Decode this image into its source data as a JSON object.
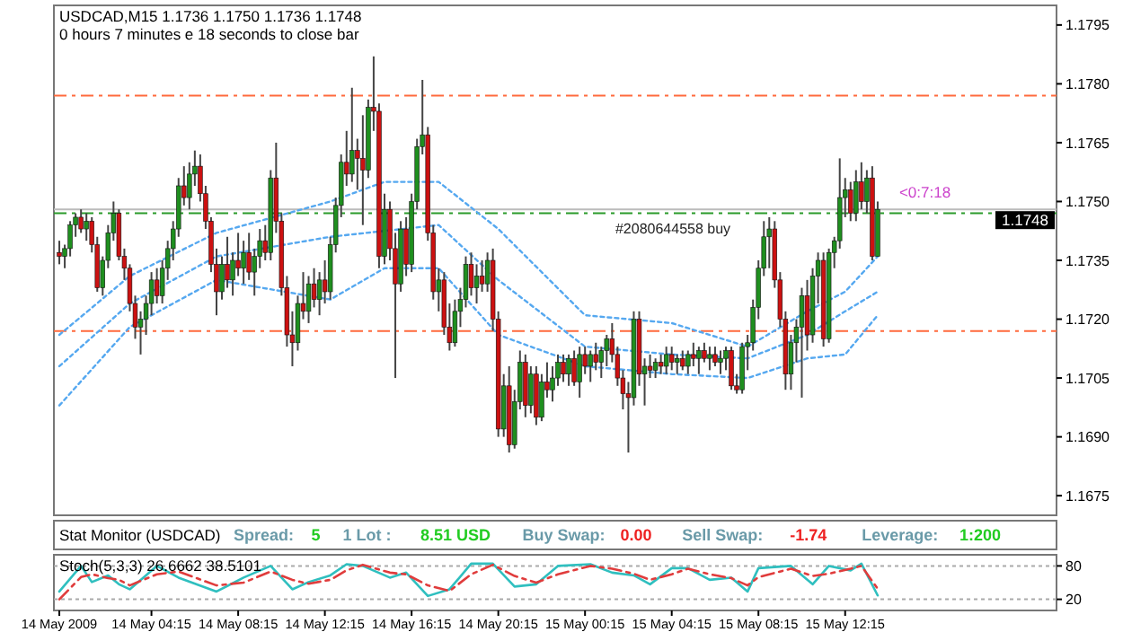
{
  "chart_data": [
    {
      "type": "candlestick",
      "title": "USDCAD,M15  1.1736 1.1750 1.1736 1.1748",
      "subtitle": "0 hours 7 minutes e 18 seconds to close bar",
      "xlim": [
        "2009-05-13T23:45",
        "2009-05-15T22:00"
      ],
      "ylim": [
        1.167,
        1.18
      ],
      "yticks": [
        1.1675,
        {
          "value": 1.169,
          "label": "1.1690"
        },
        1.1705,
        {
          "value": 1.172,
          "label": "1.1720"
        },
        1.1735,
        {
          "value": 1.175,
          "label": "1.1750"
        },
        1.1765,
        {
          "value": 1.178,
          "label": "1.1780"
        },
        1.1795
      ],
      "tick_labels": "y",
      "x": [
        "2009-05-14T00:00",
        "2009-05-14T00:15",
        "2009-05-14T00:30",
        "2009-05-14T00:45",
        "2009-05-14T01:00",
        "2009-05-14T01:15",
        "2009-05-14T01:30",
        "2009-05-14T01:45",
        "2009-05-14T02:00",
        "2009-05-14T02:15",
        "2009-05-14T02:30",
        "2009-05-14T02:45",
        "2009-05-14T03:00",
        "2009-05-14T03:15",
        "2009-05-14T03:30",
        "2009-05-14T03:45",
        "2009-05-14T04:00",
        "2009-05-14T04:15",
        "2009-05-14T04:30",
        "2009-05-14T04:45",
        "2009-05-14T05:00",
        "2009-05-14T05:15",
        "2009-05-14T05:30",
        "2009-05-14T05:45",
        "2009-05-14T06:00",
        "2009-05-14T06:15",
        "2009-05-14T06:30",
        "2009-05-14T06:45",
        "2009-05-14T07:00",
        "2009-05-14T07:15",
        "2009-05-14T07:30",
        "2009-05-14T07:45",
        "2009-05-14T08:00",
        "2009-05-14T08:15",
        "2009-05-14T08:30",
        "2009-05-14T08:45",
        "2009-05-14T09:00",
        "2009-05-14T09:15",
        "2009-05-14T09:30",
        "2009-05-14T09:45",
        "2009-05-14T10:00",
        "2009-05-14T10:15",
        "2009-05-14T10:30",
        "2009-05-14T10:45",
        "2009-05-14T11:00",
        "2009-05-14T11:15",
        "2009-05-14T11:30",
        "2009-05-14T11:45",
        "2009-05-14T12:00",
        "2009-05-14T12:15",
        "2009-05-14T12:30",
        "2009-05-14T12:45",
        "2009-05-14T13:00",
        "2009-05-14T13:15",
        "2009-05-14T13:30",
        "2009-05-14T13:45",
        "2009-05-14T14:00",
        "2009-05-14T14:15",
        "2009-05-14T14:30",
        "2009-05-14T14:45",
        "2009-05-14T15:00",
        "2009-05-14T15:15",
        "2009-05-14T15:30",
        "2009-05-14T15:45",
        "2009-05-14T16:00",
        "2009-05-14T16:15",
        "2009-05-14T16:30",
        "2009-05-14T16:45",
        "2009-05-14T17:00",
        "2009-05-14T17:15",
        "2009-05-14T17:30",
        "2009-05-14T17:45",
        "2009-05-14T18:00",
        "2009-05-14T18:15",
        "2009-05-14T18:30",
        "2009-05-14T18:45",
        "2009-05-14T19:00",
        "2009-05-14T19:15",
        "2009-05-14T19:30",
        "2009-05-14T19:45",
        "2009-05-14T20:00",
        "2009-05-14T20:15",
        "2009-05-14T20:30",
        "2009-05-14T20:45",
        "2009-05-14T21:00",
        "2009-05-14T21:15",
        "2009-05-14T21:30",
        "2009-05-14T21:45",
        "2009-05-14T22:00",
        "2009-05-14T22:15",
        "2009-05-14T22:30",
        "2009-05-14T22:45",
        "2009-05-14T23:00",
        "2009-05-14T23:15",
        "2009-05-14T23:30",
        "2009-05-14T23:45",
        "2009-05-15T00:00",
        "2009-05-15T00:15",
        "2009-05-15T00:30",
        "2009-05-15T00:45",
        "2009-05-15T01:00",
        "2009-05-15T01:15",
        "2009-05-15T01:30",
        "2009-05-15T01:45",
        "2009-05-15T02:00",
        "2009-05-15T02:15",
        "2009-05-15T02:30",
        "2009-05-15T02:45",
        "2009-05-15T03:00",
        "2009-05-15T03:15",
        "2009-05-15T03:30",
        "2009-05-15T03:45",
        "2009-05-15T04:00",
        "2009-05-15T04:15",
        "2009-05-15T04:30",
        "2009-05-15T04:45",
        "2009-05-15T05:00",
        "2009-05-15T05:15",
        "2009-05-15T05:30",
        "2009-05-15T05:45",
        "2009-05-15T06:00",
        "2009-05-15T06:15",
        "2009-05-15T06:30",
        "2009-05-15T06:45",
        "2009-05-15T07:00",
        "2009-05-15T07:15",
        "2009-05-15T07:30",
        "2009-05-15T07:45",
        "2009-05-15T08:00",
        "2009-05-15T08:15",
        "2009-05-15T08:30",
        "2009-05-15T08:45",
        "2009-05-15T09:00",
        "2009-05-15T09:15",
        "2009-05-15T09:30",
        "2009-05-15T09:45",
        "2009-05-15T10:00",
        "2009-05-15T10:15",
        "2009-05-15T10:30",
        "2009-05-15T10:45",
        "2009-05-15T11:00",
        "2009-05-15T11:15",
        "2009-05-15T11:30",
        "2009-05-15T11:45",
        "2009-05-15T12:00",
        "2009-05-15T12:15",
        "2009-05-15T12:30",
        "2009-05-15T12:45",
        "2009-05-15T13:00",
        "2009-05-15T13:15",
        "2009-05-15T13:30",
        "2009-05-15T13:45"
      ],
      "ohlc": [
        [
          1.1737,
          1.174,
          1.1734,
          1.1736
        ],
        [
          1.1736,
          1.1739,
          1.1733,
          1.1738
        ],
        [
          1.1738,
          1.1745,
          1.1736,
          1.1744
        ],
        [
          1.1744,
          1.1747,
          1.1741,
          1.1746
        ],
        [
          1.1746,
          1.1748,
          1.1742,
          1.1743
        ],
        [
          1.1743,
          1.1747,
          1.174,
          1.1745
        ],
        [
          1.1745,
          1.1746,
          1.1737,
          1.1739
        ],
        [
          1.1739,
          1.1741,
          1.1727,
          1.1728
        ],
        [
          1.1728,
          1.1736,
          1.1726,
          1.1735
        ],
        [
          1.1735,
          1.1744,
          1.1733,
          1.1742
        ],
        [
          1.1742,
          1.175,
          1.174,
          1.1747
        ],
        [
          1.1747,
          1.1748,
          1.1735,
          1.1736
        ],
        [
          1.1736,
          1.1738,
          1.173,
          1.1733
        ],
        [
          1.1733,
          1.1734,
          1.1722,
          1.1724
        ],
        [
          1.1724,
          1.1726,
          1.1715,
          1.1718
        ],
        [
          1.1718,
          1.1722,
          1.1711,
          1.172
        ],
        [
          1.172,
          1.1726,
          1.1716,
          1.1724
        ],
        [
          1.1724,
          1.1732,
          1.1721,
          1.173
        ],
        [
          1.173,
          1.1733,
          1.1724,
          1.1726
        ],
        [
          1.1726,
          1.1735,
          1.1724,
          1.1733
        ],
        [
          1.1733,
          1.174,
          1.173,
          1.1738
        ],
        [
          1.1738,
          1.1745,
          1.1735,
          1.1743
        ],
        [
          1.1743,
          1.1756,
          1.1741,
          1.1754
        ],
        [
          1.1754,
          1.1759,
          1.1749,
          1.1751
        ],
        [
          1.1751,
          1.176,
          1.1748,
          1.1757
        ],
        [
          1.1757,
          1.1763,
          1.1754,
          1.1759
        ],
        [
          1.1759,
          1.1762,
          1.175,
          1.1752
        ],
        [
          1.1752,
          1.1754,
          1.1743,
          1.1745
        ],
        [
          1.1745,
          1.1746,
          1.1732,
          1.1734
        ],
        [
          1.1734,
          1.1738,
          1.1721,
          1.1727
        ],
        [
          1.1727,
          1.1736,
          1.1725,
          1.1734
        ],
        [
          1.1734,
          1.1741,
          1.1728,
          1.173
        ],
        [
          1.173,
          1.1737,
          1.1726,
          1.1735
        ],
        [
          1.1735,
          1.1742,
          1.1731,
          1.1733
        ],
        [
          1.1733,
          1.174,
          1.1729,
          1.1737
        ],
        [
          1.1737,
          1.1742,
          1.173,
          1.1732
        ],
        [
          1.1732,
          1.1738,
          1.1726,
          1.1736
        ],
        [
          1.1736,
          1.1743,
          1.1733,
          1.174
        ],
        [
          1.174,
          1.1744,
          1.1735,
          1.1737
        ],
        [
          1.1737,
          1.1758,
          1.1735,
          1.1756
        ],
        [
          1.1756,
          1.1765,
          1.1742,
          1.1745
        ],
        [
          1.1745,
          1.1747,
          1.1726,
          1.1728
        ],
        [
          1.1728,
          1.1731,
          1.1713,
          1.1716
        ],
        [
          1.1716,
          1.1722,
          1.1708,
          1.1714
        ],
        [
          1.1714,
          1.1726,
          1.1712,
          1.1724
        ],
        [
          1.1724,
          1.1732,
          1.172,
          1.1722
        ],
        [
          1.1722,
          1.1731,
          1.1719,
          1.1729
        ],
        [
          1.1729,
          1.1733,
          1.1723,
          1.1725
        ],
        [
          1.1725,
          1.1732,
          1.1721,
          1.173
        ],
        [
          1.173,
          1.1735,
          1.1724,
          1.1727
        ],
        [
          1.1727,
          1.1741,
          1.1725,
          1.1739
        ],
        [
          1.1739,
          1.1751,
          1.1737,
          1.1749
        ],
        [
          1.1749,
          1.1762,
          1.1746,
          1.176
        ],
        [
          1.176,
          1.1768,
          1.1754,
          1.1757
        ],
        [
          1.1757,
          1.1779,
          1.1755,
          1.1763
        ],
        [
          1.1763,
          1.1766,
          1.1753,
          1.1761
        ],
        [
          1.1761,
          1.1772,
          1.1744,
          1.1758
        ],
        [
          1.1758,
          1.1776,
          1.1756,
          1.1774
        ],
        [
          1.1774,
          1.1787,
          1.1768,
          1.1773
        ],
        [
          1.1773,
          1.1775,
          1.1733,
          1.1736
        ],
        [
          1.1736,
          1.1752,
          1.1734,
          1.1748
        ],
        [
          1.1748,
          1.175,
          1.1735,
          1.1738
        ],
        [
          1.1738,
          1.1742,
          1.1705,
          1.1729
        ],
        [
          1.1729,
          1.1745,
          1.1727,
          1.1743
        ],
        [
          1.1743,
          1.1746,
          1.1731,
          1.1734
        ],
        [
          1.1734,
          1.1752,
          1.1732,
          1.175
        ],
        [
          1.175,
          1.1766,
          1.1748,
          1.1764
        ],
        [
          1.1764,
          1.1781,
          1.1762,
          1.1767
        ],
        [
          1.1767,
          1.1769,
          1.174,
          1.1742
        ],
        [
          1.1742,
          1.1744,
          1.1725,
          1.1727
        ],
        [
          1.1727,
          1.1733,
          1.1722,
          1.173
        ],
        [
          1.173,
          1.1732,
          1.1716,
          1.1718
        ],
        [
          1.1718,
          1.1724,
          1.1712,
          1.1714
        ],
        [
          1.1714,
          1.1725,
          1.1713,
          1.1722
        ],
        [
          1.1722,
          1.1728,
          1.1718,
          1.1725
        ],
        [
          1.1725,
          1.1736,
          1.1723,
          1.1734
        ],
        [
          1.1734,
          1.1737,
          1.1726,
          1.1728
        ],
        [
          1.1728,
          1.1734,
          1.1724,
          1.1731
        ],
        [
          1.1731,
          1.1735,
          1.1727,
          1.1729
        ],
        [
          1.1729,
          1.1737,
          1.1727,
          1.1735
        ],
        [
          1.1735,
          1.1738,
          1.1717,
          1.172
        ],
        [
          1.172,
          1.1722,
          1.169,
          1.1692
        ],
        [
          1.1692,
          1.1706,
          1.169,
          1.1703
        ],
        [
          1.1703,
          1.1708,
          1.1686,
          1.1688
        ],
        [
          1.1688,
          1.1702,
          1.1687,
          1.1699
        ],
        [
          1.1699,
          1.1712,
          1.1697,
          1.1709
        ],
        [
          1.1709,
          1.1711,
          1.1695,
          1.1698
        ],
        [
          1.1698,
          1.1708,
          1.1696,
          1.1706
        ],
        [
          1.1706,
          1.1708,
          1.1693,
          1.1695
        ],
        [
          1.1695,
          1.1706,
          1.1694,
          1.1704
        ],
        [
          1.1704,
          1.1709,
          1.17,
          1.1702
        ],
        [
          1.1702,
          1.1708,
          1.1699,
          1.1705
        ],
        [
          1.1705,
          1.1711,
          1.1703,
          1.1709
        ],
        [
          1.1709,
          1.1711,
          1.1704,
          1.1706
        ],
        [
          1.1706,
          1.1711,
          1.1703,
          1.171
        ],
        [
          1.171,
          1.1712,
          1.1703,
          1.1704
        ],
        [
          1.1704,
          1.1713,
          1.17,
          1.1711
        ],
        [
          1.1711,
          1.1713,
          1.1706,
          1.1708
        ],
        [
          1.1708,
          1.1712,
          1.1704,
          1.1711
        ],
        [
          1.1711,
          1.1714,
          1.1707,
          1.1709
        ],
        [
          1.1709,
          1.1713,
          1.1705,
          1.1712
        ],
        [
          1.1712,
          1.1716,
          1.1708,
          1.1715
        ],
        [
          1.1715,
          1.1719,
          1.1709,
          1.1711
        ],
        [
          1.1711,
          1.1713,
          1.1703,
          1.1705
        ],
        [
          1.1705,
          1.1707,
          1.1697,
          1.1701
        ],
        [
          1.1701,
          1.1704,
          1.1686,
          1.17
        ],
        [
          1.17,
          1.1722,
          1.1698,
          1.172
        ],
        [
          1.172,
          1.1722,
          1.1703,
          1.1706
        ],
        [
          1.1706,
          1.171,
          1.1698,
          1.1708
        ],
        [
          1.1708,
          1.1711,
          1.1705,
          1.1707
        ],
        [
          1.1707,
          1.171,
          1.1705,
          1.1709
        ],
        [
          1.1709,
          1.1711,
          1.1706,
          1.1708
        ],
        [
          1.1708,
          1.1713,
          1.1706,
          1.1711
        ],
        [
          1.1711,
          1.1713,
          1.1707,
          1.1709
        ],
        [
          1.1709,
          1.1711,
          1.1706,
          1.171
        ],
        [
          1.171,
          1.1712,
          1.1707,
          1.1708
        ],
        [
          1.1708,
          1.1712,
          1.1706,
          1.1711
        ],
        [
          1.1711,
          1.1714,
          1.1708,
          1.171
        ],
        [
          1.171,
          1.1713,
          1.1706,
          1.1712
        ],
        [
          1.1712,
          1.1714,
          1.1709,
          1.171
        ],
        [
          1.171,
          1.1713,
          1.1707,
          1.1711
        ],
        [
          1.1711,
          1.1713,
          1.1708,
          1.1709
        ],
        [
          1.1709,
          1.1712,
          1.1706,
          1.171
        ],
        [
          1.171,
          1.1713,
          1.1707,
          1.1712
        ],
        [
          1.1712,
          1.1713,
          1.1702,
          1.1703
        ],
        [
          1.1703,
          1.1706,
          1.1701,
          1.1702
        ],
        [
          1.1702,
          1.1714,
          1.1701,
          1.1713
        ],
        [
          1.1713,
          1.1716,
          1.1707,
          1.1714
        ],
        [
          1.1714,
          1.1725,
          1.1712,
          1.1723
        ],
        [
          1.1723,
          1.1735,
          1.172,
          1.1733
        ],
        [
          1.1733,
          1.1745,
          1.1731,
          1.1741
        ],
        [
          1.1741,
          1.1746,
          1.1733,
          1.1743
        ],
        [
          1.1743,
          1.1745,
          1.1728,
          1.173
        ],
        [
          1.173,
          1.1732,
          1.1718,
          1.172
        ],
        [
          1.172,
          1.1722,
          1.1702,
          1.1706
        ],
        [
          1.1706,
          1.1716,
          1.1702,
          1.1714
        ],
        [
          1.1714,
          1.172,
          1.1709,
          1.1718
        ],
        [
          1.1718,
          1.1728,
          1.17,
          1.1726
        ],
        [
          1.1726,
          1.173,
          1.1712,
          1.1716
        ],
        [
          1.1716,
          1.1733,
          1.1714,
          1.1731
        ],
        [
          1.1731,
          1.1737,
          1.1724,
          1.1735
        ],
        [
          1.1735,
          1.1737,
          1.1713,
          1.1715
        ],
        [
          1.1715,
          1.1738,
          1.1714,
          1.1737
        ],
        [
          1.1737,
          1.1741,
          1.1733,
          1.174
        ],
        [
          1.174,
          1.1761,
          1.1738,
          1.1751
        ],
        [
          1.1751,
          1.1756,
          1.1746,
          1.1753
        ],
        [
          1.1753,
          1.1755,
          1.1745,
          1.1747
        ],
        [
          1.1747,
          1.1758,
          1.1745,
          1.1755
        ],
        [
          1.1755,
          1.176,
          1.1748,
          1.175
        ],
        [
          1.175,
          1.1758,
          1.1747,
          1.1756
        ],
        [
          1.1756,
          1.1759,
          1.1735,
          1.1736
        ],
        [
          1.1736,
          1.175,
          1.1736,
          1.1748
        ]
      ],
      "colors": [
        "#cc1111",
        "#1f8f1f",
        "#1f8f1f",
        "#1f8f1f",
        "#cc1111",
        "#1f8f1f",
        "#cc1111",
        "#cc1111",
        "#1f8f1f",
        "#1f8f1f",
        "#1f8f1f",
        "#cc1111",
        "#cc1111",
        "#cc1111",
        "#cc1111",
        "#1f8f1f",
        "#1f8f1f",
        "#1f8f1f",
        "#cc1111",
        "#1f8f1f",
        "#1f8f1f",
        "#1f8f1f",
        "#1f8f1f",
        "#cc1111",
        "#1f8f1f",
        "#1f8f1f",
        "#cc1111",
        "#cc1111",
        "#cc1111",
        "#cc1111",
        "#1f8f1f",
        "#cc1111",
        "#1f8f1f",
        "#cc1111",
        "#1f8f1f",
        "#cc1111",
        "#1f8f1f",
        "#1f8f1f",
        "#cc1111",
        "#1f8f1f",
        "#cc1111",
        "#cc1111",
        "#cc1111",
        "#cc1111",
        "#1f8f1f",
        "#cc1111",
        "#1f8f1f",
        "#cc1111",
        "#1f8f1f",
        "#cc1111",
        "#1f8f1f",
        "#1f8f1f",
        "#1f8f1f",
        "#cc1111",
        "#1f8f1f",
        "#cc1111",
        "#cc1111",
        "#1f8f1f",
        "#cc1111",
        "#cc1111",
        "#1f8f1f",
        "#cc1111",
        "#cc1111",
        "#1f8f1f",
        "#cc1111",
        "#1f8f1f",
        "#1f8f1f",
        "#1f8f1f",
        "#cc1111",
        "#cc1111",
        "#1f8f1f",
        "#cc1111",
        "#cc1111",
        "#1f8f1f",
        "#1f8f1f",
        "#1f8f1f",
        "#cc1111",
        "#1f8f1f",
        "#cc1111",
        "#1f8f1f",
        "#cc1111",
        "#cc1111",
        "#1f8f1f",
        "#cc1111",
        "#1f8f1f",
        "#1f8f1f",
        "#cc1111",
        "#1f8f1f",
        "#cc1111",
        "#1f8f1f",
        "#cc1111",
        "#1f8f1f",
        "#1f8f1f",
        "#cc1111",
        "#1f8f1f",
        "#cc1111",
        "#1f8f1f",
        "#cc1111",
        "#1f8f1f",
        "#cc1111",
        "#1f8f1f",
        "#1f8f1f",
        "#cc1111",
        "#cc1111",
        "#cc1111",
        "#cc1111",
        "#1f8f1f",
        "#cc1111",
        "#1f8f1f",
        "#cc1111",
        "#1f8f1f",
        "#cc1111",
        "#1f8f1f",
        "#cc1111",
        "#1f8f1f",
        "#cc1111",
        "#1f8f1f",
        "#cc1111",
        "#1f8f1f",
        "#cc1111",
        "#1f8f1f",
        "#cc1111",
        "#1f8f1f",
        "#1f8f1f",
        "#cc1111",
        "#cc1111",
        "#1f8f1f",
        "#1f8f1f",
        "#1f8f1f",
        "#1f8f1f",
        "#1f8f1f",
        "#1f8f1f",
        "#cc1111",
        "#cc1111",
        "#cc1111",
        "#1f8f1f",
        "#1f8f1f",
        "#1f8f1f",
        "#cc1111",
        "#1f8f1f",
        "#1f8f1f",
        "#cc1111",
        "#1f8f1f",
        "#1f8f1f",
        "#1f8f1f",
        "#1f8f1f",
        "#cc1111",
        "#1f8f1f",
        "#cc1111",
        "#1f8f1f",
        "#cc1111",
        "#1f8f1f"
      ],
      "series": [
        {
          "type": "line",
          "line_style": "dotted",
          "color": "#55a8f0",
          "x": [
            "2009-05-14T00:00",
            "2009-05-14T03:15",
            "2009-05-14T07:15",
            "2009-05-14T12:30",
            "2009-05-14T15:00",
            "2009-05-14T17:30",
            "2009-05-14T20:15",
            "2009-05-15T00:15",
            "2009-05-15T04:15",
            "2009-05-15T07:45",
            "2009-05-15T10:30",
            "2009-05-15T12:15",
            "2009-05-15T13:45"
          ],
          "values": [
            1.1716,
            1.1731,
            1.1742,
            1.175,
            1.1755,
            1.1755,
            1.1743,
            1.1721,
            1.1719,
            1.1713,
            1.1722,
            1.1727,
            1.1736
          ]
        },
        {
          "type": "line",
          "line_style": "dotted",
          "color": "#55a8f0",
          "x": [
            "2009-05-14T00:00",
            "2009-05-14T03:15",
            "2009-05-14T07:15",
            "2009-05-14T12:30",
            "2009-05-14T15:00",
            "2009-05-14T17:30",
            "2009-05-14T20:15",
            "2009-05-15T00:15",
            "2009-05-15T04:15",
            "2009-05-15T07:45",
            "2009-05-15T10:30",
            "2009-05-15T12:15",
            "2009-05-15T13:45"
          ],
          "values": [
            1.1708,
            1.1724,
            1.1736,
            1.1741,
            null,
            1.1744,
            1.173,
            1.1713,
            1.1711,
            1.171,
            1.1716,
            1.1722,
            1.1727
          ]
        },
        {
          "type": "line",
          "line_style": "dotted",
          "color": "#55a8f0",
          "x": [
            "2009-05-14T00:00",
            "2009-05-14T03:15",
            "2009-05-14T07:15",
            "2009-05-14T12:30",
            "2009-05-14T15:00",
            "2009-05-14T17:30",
            "2009-05-14T20:15",
            "2009-05-15T00:15",
            "2009-05-15T04:15",
            "2009-05-15T07:45",
            "2009-05-15T10:30",
            "2009-05-15T12:15",
            "2009-05-15T13:45"
          ],
          "values": [
            1.1698,
            1.1718,
            1.173,
            1.1725,
            1.1733,
            1.1733,
            1.1716,
            1.1708,
            1.1706,
            1.1705,
            1.171,
            1.1711,
            1.1721
          ]
        }
      ],
      "ref_lines": [
        {
          "axis": "y",
          "value": 1.1777,
          "color": "#ff6a3d",
          "line_style": "dashed"
        },
        {
          "axis": "y",
          "value": 1.1717,
          "color": "#ff6a3d",
          "line_style": "dashed"
        },
        {
          "axis": "y",
          "value": 1.1747,
          "color": "#2a9a2a",
          "line_style": "dashed",
          "label": "#2080644558 buy"
        },
        {
          "axis": "y",
          "value": 1.1748,
          "color": "#bbbbbb",
          "line_style": "solid",
          "label": "1.1748"
        }
      ],
      "annotations": [
        "<0:7:18"
      ]
    },
    {
      "type": "other",
      "title": "Stat Monitor (USDCAD)",
      "annotations": [
        "Spread:",
        "5",
        "1 Lot :",
        "8.51 USD",
        "Buy Swap:",
        "0.00",
        "Sell Swap:",
        "-1.74",
        "Leverage:",
        "1:200"
      ],
      "colors": [
        "#6a9aa8",
        "#22cc22",
        "#6a9aa8",
        "#22cc22",
        "#6a9aa8",
        "#ee2222",
        "#6a9aa8",
        "#ee2222",
        "#6a9aa8",
        "#22cc22"
      ]
    },
    {
      "type": "line",
      "title": "Stoch(5,3,3) 26.6662 38.5101",
      "xlim": [
        "2009-05-13T23:45",
        "2009-05-15T22:00"
      ],
      "xticks": [
        {
          "value": "2009-05-14T00:00",
          "label": "14 May 2009"
        },
        {
          "value": "2009-05-14T04:15",
          "label": "14 May 04:15"
        },
        {
          "value": "2009-05-14T08:15",
          "label": "14 May 08:15"
        },
        {
          "value": "2009-05-14T12:15",
          "label": "14 May 12:15"
        },
        {
          "value": "2009-05-14T16:15",
          "label": "14 May 16:15"
        },
        {
          "value": "2009-05-14T20:15",
          "label": "14 May 20:15"
        },
        {
          "value": "2009-05-15T00:15",
          "label": "15 May 00:15"
        },
        {
          "value": "2009-05-15T04:15",
          "label": "15 May 04:15"
        },
        {
          "value": "2009-05-15T08:15",
          "label": "15 May 08:15"
        },
        {
          "value": "2009-05-15T12:15",
          "label": "15 May 12:15"
        }
      ],
      "ylim": [
        0,
        100
      ],
      "yticks": [
        20,
        80
      ],
      "grid": "y",
      "series": [
        {
          "color": "#2fbfbf",
          "x": [
            "2009-05-14T00:00",
            "2009-05-14T01:00",
            "2009-05-14T01:30",
            "2009-05-14T02:15",
            "2009-05-14T02:45",
            "2009-05-14T03:15",
            "2009-05-14T04:30",
            "2009-05-14T05:30",
            "2009-05-14T07:15",
            "2009-05-14T08:30",
            "2009-05-14T09:45",
            "2009-05-14T10:45",
            "2009-05-14T11:30",
            "2009-05-14T12:30",
            "2009-05-14T13:15",
            "2009-05-14T14:00",
            "2009-05-14T15:15",
            "2009-05-14T16:00",
            "2009-05-14T17:00",
            "2009-05-14T18:00",
            "2009-05-14T19:00",
            "2009-05-14T20:00",
            "2009-05-14T21:00",
            "2009-05-14T22:00",
            "2009-05-14T23:00",
            "2009-05-15T00:30",
            "2009-05-15T01:30",
            "2009-05-15T02:30",
            "2009-05-15T03:15",
            "2009-05-15T04:15",
            "2009-05-15T05:00",
            "2009-05-15T06:00",
            "2009-05-15T07:00",
            "2009-05-15T07:45",
            "2009-05-15T08:15",
            "2009-05-15T09:45",
            "2009-05-15T10:45",
            "2009-05-15T11:30",
            "2009-05-15T12:30",
            "2009-05-15T13:00",
            "2009-05-15T13:45"
          ],
          "values": [
            34,
            80,
            51,
            63,
            47,
            38,
            80,
            59,
            34,
            59,
            80,
            38,
            51,
            63,
            83,
            80,
            59,
            68,
            26,
            38,
            84,
            84,
            43,
            47,
            80,
            83,
            68,
            63,
            47,
            76,
            76,
            55,
            59,
            34,
            76,
            80,
            47,
            80,
            72,
            84,
            27
          ]
        },
        {
          "color": "#e03c3c",
          "line_style": "dashed",
          "x": [
            "2009-05-14T00:00",
            "2009-05-14T01:00",
            "2009-05-14T01:30",
            "2009-05-14T02:15",
            "2009-05-14T02:45",
            "2009-05-14T03:15",
            "2009-05-14T04:30",
            "2009-05-14T05:30",
            "2009-05-14T07:15",
            "2009-05-14T08:30",
            "2009-05-14T09:45",
            "2009-05-14T10:45",
            "2009-05-14T11:30",
            "2009-05-14T12:30",
            "2009-05-14T13:15",
            "2009-05-14T14:00",
            "2009-05-14T15:15",
            "2009-05-14T16:00",
            "2009-05-14T17:00",
            "2009-05-14T18:00",
            "2009-05-14T19:00",
            "2009-05-14T20:00",
            "2009-05-14T21:00",
            "2009-05-14T22:00",
            "2009-05-14T23:00",
            "2009-05-15T00:30",
            "2009-05-15T01:30",
            "2009-05-15T02:30",
            "2009-05-15T03:15",
            "2009-05-15T04:15",
            "2009-05-15T05:00",
            "2009-05-15T06:00",
            "2009-05-15T07:00",
            "2009-05-15T07:45",
            "2009-05-15T08:15",
            "2009-05-15T09:45",
            "2009-05-15T10:45",
            "2009-05-15T11:30",
            "2009-05-15T12:30",
            "2009-05-15T13:00",
            "2009-05-15T13:45"
          ],
          "values": [
            20,
            60,
            65,
            58,
            55,
            45,
            65,
            70,
            45,
            50,
            70,
            55,
            48,
            55,
            72,
            82,
            68,
            65,
            45,
            35,
            65,
            82,
            62,
            50,
            65,
            80,
            75,
            66,
            55,
            65,
            75,
            65,
            58,
            45,
            60,
            75,
            62,
            66,
            75,
            80,
            39
          ]
        }
      ]
    }
  ]
}
